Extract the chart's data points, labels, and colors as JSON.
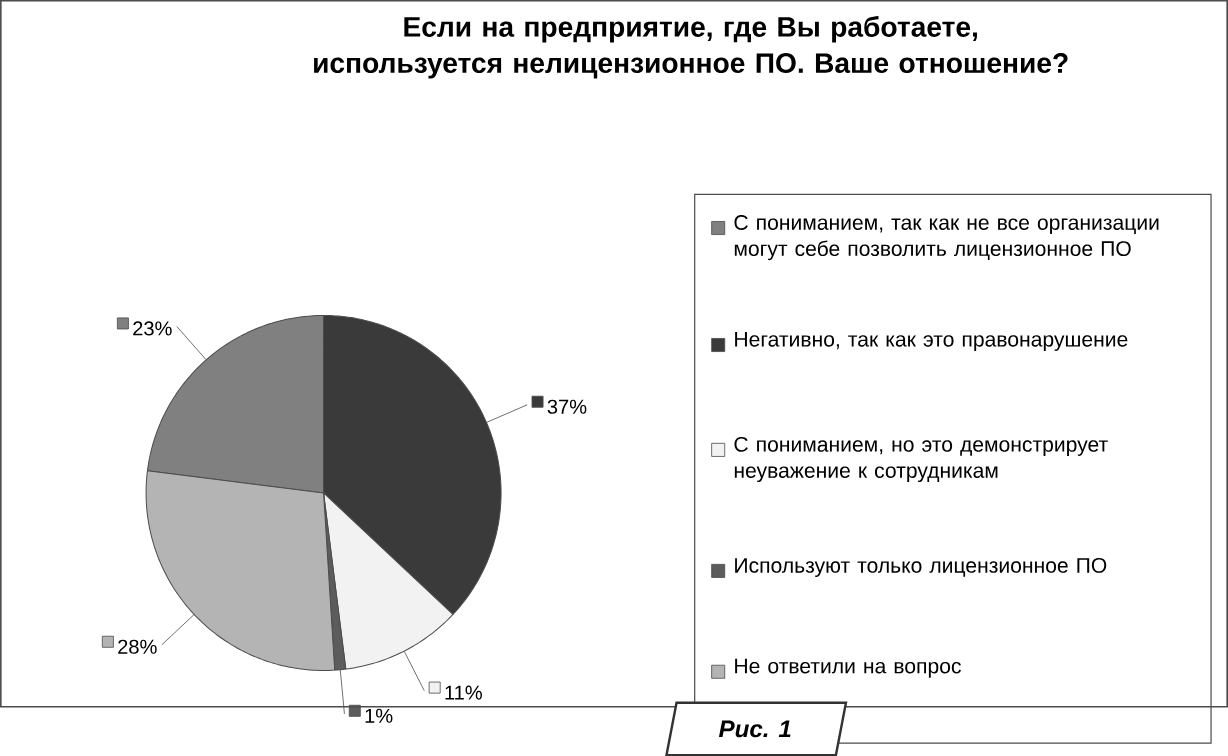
{
  "chart_data": {
    "type": "pie",
    "title": "Если на предприятие, где Вы работаете, используется нелицензионное ПО. Ваше отношение?",
    "categories": [
      "С пониманием, так как не все организации могут себе позволить лицензионное ПО",
      "Негативно, так как это правонарушение",
      "С пониманием, но это демонстрирует неуважение к сотрудникам",
      "Используют только лицензионное ПО",
      "Не ответили на вопрос"
    ],
    "values": [
      23,
      37,
      11,
      1,
      28
    ],
    "colors": [
      "#808080",
      "#3a3a3a",
      "#f2f2f2",
      "#5c5c5c",
      "#b4b4b4"
    ],
    "value_labels": [
      "23%",
      "37%",
      "11%",
      "1%",
      "28%"
    ],
    "legend": "right",
    "annotations": [
      "Рис. 1"
    ]
  }
}
